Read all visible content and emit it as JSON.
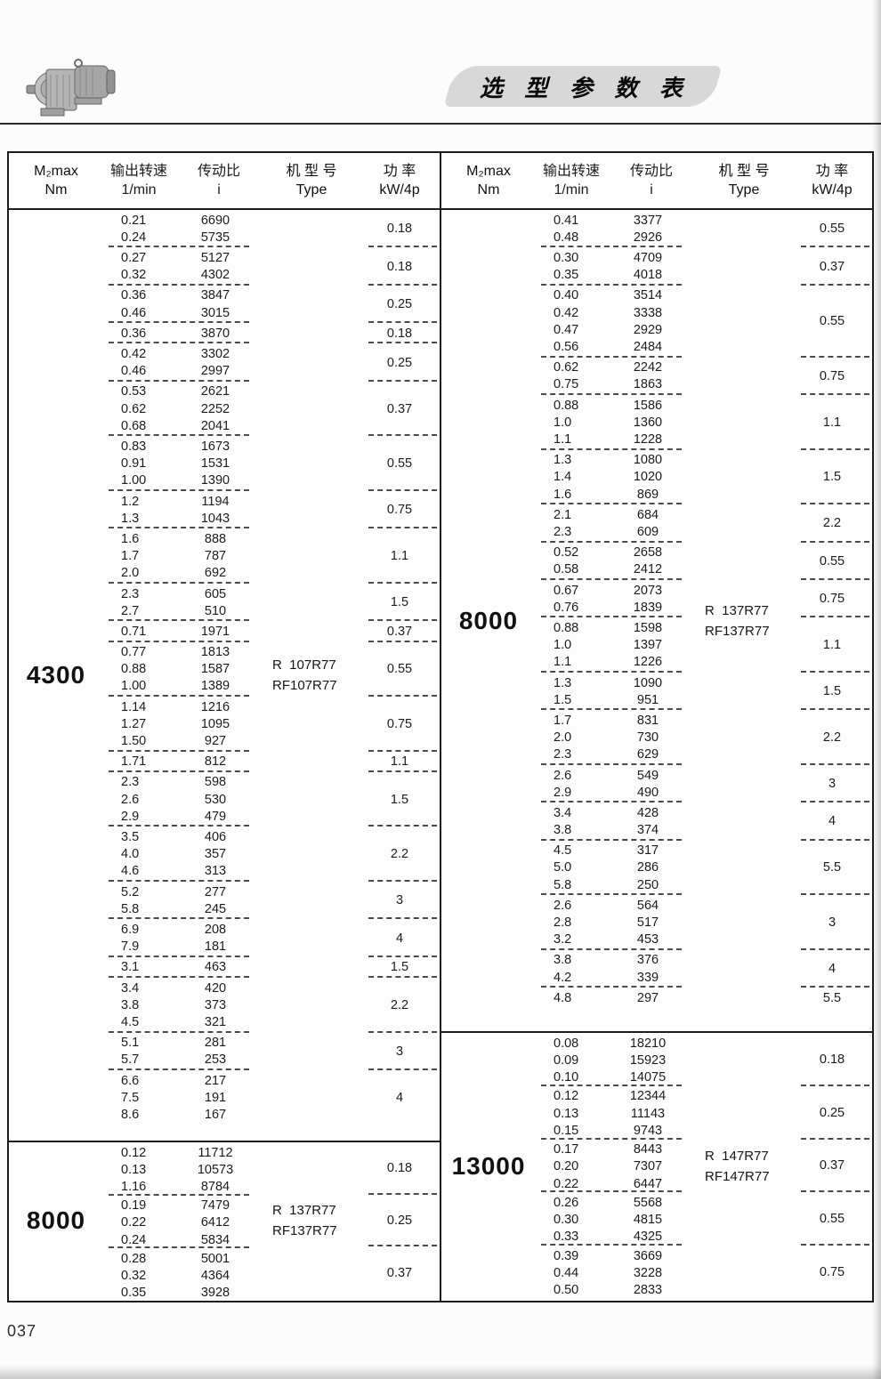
{
  "page": {
    "title": "选 型 参 数 表",
    "page_number": "037"
  },
  "header": {
    "torque": {
      "line1": "M₂max",
      "line2": "Nm"
    },
    "speed": {
      "line1": "输出转速",
      "line2": "1/min"
    },
    "ratio": {
      "line1": "传动比",
      "line2": "i"
    },
    "type": {
      "line1": "机 型 号",
      "line2": "Type"
    },
    "power": {
      "line1": "功  率",
      "line2": "kW/4p"
    }
  },
  "tables": {
    "left": {
      "sections": [
        {
          "torque": "4300",
          "type_lines": [
            "R  107R77",
            "RF107R77"
          ],
          "groups": [
            {
              "speeds": [
                "0.21",
                "0.24"
              ],
              "ratios": [
                "6690",
                "5735"
              ],
              "power": "0.18"
            },
            {
              "speeds": [
                "0.27",
                "0.32"
              ],
              "ratios": [
                "5127",
                "4302"
              ],
              "power": "0.18"
            },
            {
              "speeds": [
                "0.36",
                "0.46"
              ],
              "ratios": [
                "3847",
                "3015"
              ],
              "power": "0.25"
            },
            {
              "speeds": [
                "0.36"
              ],
              "ratios": [
                "3870"
              ],
              "power": "0.18"
            },
            {
              "speeds": [
                "0.42",
                "0.46"
              ],
              "ratios": [
                "3302",
                "2997"
              ],
              "power": "0.25"
            },
            {
              "speeds": [
                "0.53",
                "0.62",
                "0.68"
              ],
              "ratios": [
                "2621",
                "2252",
                "2041"
              ],
              "power": "0.37"
            },
            {
              "speeds": [
                "0.83",
                "0.91",
                "1.00"
              ],
              "ratios": [
                "1673",
                "1531",
                "1390"
              ],
              "power": "0.55"
            },
            {
              "speeds": [
                "1.2",
                "1.3"
              ],
              "ratios": [
                "1194",
                "1043"
              ],
              "power": "0.75"
            },
            {
              "speeds": [
                "1.6",
                "1.7",
                "2.0"
              ],
              "ratios": [
                "888",
                "787",
                "692"
              ],
              "power": "1.1"
            },
            {
              "speeds": [
                "2.3",
                "2.7"
              ],
              "ratios": [
                "605",
                "510"
              ],
              "power": "1.5"
            },
            {
              "speeds": [
                "0.71"
              ],
              "ratios": [
                "1971"
              ],
              "power": "0.37"
            },
            {
              "speeds": [
                "0.77",
                "0.88",
                "1.00"
              ],
              "ratios": [
                "1813",
                "1587",
                "1389"
              ],
              "power": "0.55"
            },
            {
              "speeds": [
                "1.14",
                "1.27",
                "1.50"
              ],
              "ratios": [
                "1216",
                "1095",
                "927"
              ],
              "power": "0.75"
            },
            {
              "speeds": [
                "1.71"
              ],
              "ratios": [
                "812"
              ],
              "power": "1.1"
            },
            {
              "speeds": [
                "2.3",
                "2.6",
                "2.9"
              ],
              "ratios": [
                "598",
                "530",
                "479"
              ],
              "power": "1.5"
            },
            {
              "speeds": [
                "3.5",
                "4.0",
                "4.6"
              ],
              "ratios": [
                "406",
                "357",
                "313"
              ],
              "power": "2.2"
            },
            {
              "speeds": [
                "5.2",
                "5.8"
              ],
              "ratios": [
                "277",
                "245"
              ],
              "power": "3"
            },
            {
              "speeds": [
                "6.9",
                "7.9"
              ],
              "ratios": [
                "208",
                "181"
              ],
              "power": "4"
            },
            {
              "speeds": [
                "3.1"
              ],
              "ratios": [
                "463"
              ],
              "power": "1.5"
            },
            {
              "speeds": [
                "3.4",
                "3.8",
                "4.5"
              ],
              "ratios": [
                "420",
                "373",
                "321"
              ],
              "power": "2.2"
            },
            {
              "speeds": [
                "5.1",
                "5.7"
              ],
              "ratios": [
                "281",
                "253"
              ],
              "power": "3"
            },
            {
              "speeds": [
                "6.6",
                "7.5",
                "8.6"
              ],
              "ratios": [
                "217",
                "191",
                "167"
              ],
              "power": "4"
            }
          ]
        },
        {
          "torque": "8000",
          "type_lines": [
            "R  137R77",
            "RF137R77"
          ],
          "groups": [
            {
              "speeds": [
                "0.12",
                "0.13",
                "1.16"
              ],
              "ratios": [
                "11712",
                "10573",
                "8784"
              ],
              "power": "0.18"
            },
            {
              "speeds": [
                "0.19",
                "0.22",
                "0.24"
              ],
              "ratios": [
                "7479",
                "6412",
                "5834"
              ],
              "power": "0.25"
            },
            {
              "speeds": [
                "0.28",
                "0.32",
                "0.35"
              ],
              "ratios": [
                "5001",
                "4364",
                "3928"
              ],
              "power": "0.37"
            }
          ]
        }
      ]
    },
    "right": {
      "sections": [
        {
          "torque": "8000",
          "type_lines": [
            "R  137R77",
            "RF137R77"
          ],
          "groups": [
            {
              "speeds": [
                "0.41",
                "0.48"
              ],
              "ratios": [
                "3377",
                "2926"
              ],
              "power": "0.55"
            },
            {
              "speeds": [
                "0.30",
                "0.35"
              ],
              "ratios": [
                "4709",
                "4018"
              ],
              "power": "0.37"
            },
            {
              "speeds": [
                "0.40",
                "0.42",
                "0.47",
                "0.56"
              ],
              "ratios": [
                "3514",
                "3338",
                "2929",
                "2484"
              ],
              "power": "0.55"
            },
            {
              "speeds": [
                "0.62",
                "0.75"
              ],
              "ratios": [
                "2242",
                "1863"
              ],
              "power": "0.75"
            },
            {
              "speeds": [
                "0.88",
                "1.0",
                "1.1"
              ],
              "ratios": [
                "1586",
                "1360",
                "1228"
              ],
              "power": "1.1"
            },
            {
              "speeds": [
                "1.3",
                "1.4",
                "1.6"
              ],
              "ratios": [
                "1080",
                "1020",
                "869"
              ],
              "power": "1.5"
            },
            {
              "speeds": [
                "2.1",
                "2.3"
              ],
              "ratios": [
                "684",
                "609"
              ],
              "power": "2.2"
            },
            {
              "speeds": [
                "0.52",
                "0.58"
              ],
              "ratios": [
                "2658",
                "2412"
              ],
              "power": "0.55"
            },
            {
              "speeds": [
                "0.67",
                "0.76"
              ],
              "ratios": [
                "2073",
                "1839"
              ],
              "power": "0.75"
            },
            {
              "speeds": [
                "0.88",
                "1.0",
                "1.1"
              ],
              "ratios": [
                "1598",
                "1397",
                "1226"
              ],
              "power": "1.1"
            },
            {
              "speeds": [
                "1.3",
                "1.5"
              ],
              "ratios": [
                "1090",
                "951"
              ],
              "power": "1.5"
            },
            {
              "speeds": [
                "1.7",
                "2.0",
                "2.3"
              ],
              "ratios": [
                "831",
                "730",
                "629"
              ],
              "power": "2.2"
            },
            {
              "speeds": [
                "2.6",
                "2.9"
              ],
              "ratios": [
                "549",
                "490"
              ],
              "power": "3"
            },
            {
              "speeds": [
                "3.4",
                "3.8"
              ],
              "ratios": [
                "428",
                "374"
              ],
              "power": "4"
            },
            {
              "speeds": [
                "4.5",
                "5.0",
                "5.8"
              ],
              "ratios": [
                "317",
                "286",
                "250"
              ],
              "power": "5.5"
            },
            {
              "speeds": [
                "2.6",
                "2.8",
                "3.2"
              ],
              "ratios": [
                "564",
                "517",
                "453"
              ],
              "power": "3"
            },
            {
              "speeds": [
                "3.8",
                "4.2"
              ],
              "ratios": [
                "376",
                "339"
              ],
              "power": "4"
            },
            {
              "speeds": [
                "4.8"
              ],
              "ratios": [
                "297"
              ],
              "power": "5.5"
            }
          ]
        },
        {
          "torque": "13000",
          "type_lines": [
            "R  147R77",
            "RF147R77"
          ],
          "groups": [
            {
              "speeds": [
                "0.08",
                "0.09",
                "0.10"
              ],
              "ratios": [
                "18210",
                "15923",
                "14075"
              ],
              "power": "0.18"
            },
            {
              "speeds": [
                "0.12",
                "0.13",
                "0.15"
              ],
              "ratios": [
                "12344",
                "11143",
                "9743"
              ],
              "power": "0.25"
            },
            {
              "speeds": [
                "0.17",
                "0.20",
                "0.22"
              ],
              "ratios": [
                "8443",
                "7307",
                "6447"
              ],
              "power": "0.37"
            },
            {
              "speeds": [
                "0.26",
                "0.30",
                "0.33"
              ],
              "ratios": [
                "5568",
                "4815",
                "4325"
              ],
              "power": "0.55"
            },
            {
              "speeds": [
                "0.39",
                "0.44",
                "0.50"
              ],
              "ratios": [
                "3669",
                "3228",
                "2833"
              ],
              "power": "0.75"
            }
          ]
        }
      ]
    }
  }
}
